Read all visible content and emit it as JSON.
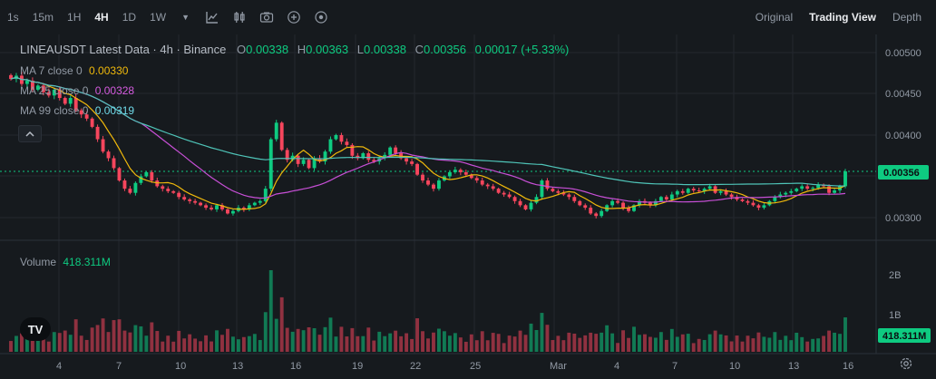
{
  "toolbar": {
    "timeframes": [
      "1s",
      "15m",
      "1H",
      "4H",
      "1D",
      "1W"
    ],
    "active_timeframe": "4H",
    "icons": [
      "chevron-down-icon",
      "indicators-icon",
      "candle-style-icon",
      "camera-icon",
      "add-circle-icon",
      "settings-dot-icon"
    ],
    "views": [
      "Original",
      "Trading View",
      "Depth"
    ],
    "active_view": "Trading View"
  },
  "legend": {
    "title": "LINEAUSDT Latest Data · 4h · Binance",
    "o_label": "O",
    "o": "0.00338",
    "h_label": "H",
    "h": "0.00363",
    "l_label": "L",
    "l": "0.00338",
    "c_label": "C",
    "c": "0.00356",
    "change": "0.00017 (+5.33%)",
    "ma7_label": "MA 7 close 0",
    "ma7": "0.00330",
    "ma25_label": "MA 25 close 0",
    "ma25": "0.00328",
    "ma99_label": "MA 99 close 0",
    "ma99": "0.00319",
    "volume_label": "Volume",
    "volume": "418.311M"
  },
  "price_axis": [
    "0.00500",
    "0.00450",
    "0.00400",
    "0.00350",
    "0.00300"
  ],
  "volume_axis": [
    "2B",
    "1B"
  ],
  "last_price_badge": "0.00356",
  "last_volume_badge": "418.311M",
  "time_axis": [
    "4",
    "7",
    "10",
    "13",
    "16",
    "19",
    "22",
    "25",
    "Mar",
    "4",
    "7",
    "10",
    "13",
    "16"
  ],
  "colors": {
    "up": "#0ecb81",
    "down": "#f6465d",
    "ma7": "#f0b90b",
    "ma25": "#c74fd6",
    "ma99": "#4fc4b8",
    "background": "#161a1e",
    "grid": "#24282e"
  },
  "chart_data": {
    "type": "candlestick",
    "symbol": "LINEAUSDT",
    "interval": "4h",
    "ylim": [
      0.0028,
      0.0052
    ],
    "close": [
      0.00468,
      0.00472,
      0.00462,
      0.00466,
      0.00455,
      0.0046,
      0.00452,
      0.00448,
      0.00455,
      0.00445,
      0.00438,
      0.00445,
      0.0043,
      0.00425,
      0.0042,
      0.0041,
      0.00395,
      0.0038,
      0.00372,
      0.0036,
      0.00345,
      0.00335,
      0.0033,
      0.00342,
      0.0035,
      0.00355,
      0.00345,
      0.00338,
      0.00335,
      0.00332,
      0.0033,
      0.00325,
      0.00322,
      0.0032,
      0.00318,
      0.00315,
      0.00312,
      0.0031,
      0.00315,
      0.0031,
      0.00305,
      0.00308,
      0.00312,
      0.0031,
      0.00315,
      0.00318,
      0.0032,
      0.00335,
      0.00395,
      0.00415,
      0.00382,
      0.0037,
      0.00375,
      0.00365,
      0.0037,
      0.0036,
      0.00372,
      0.00368,
      0.0038,
      0.00395,
      0.004,
      0.00392,
      0.00388,
      0.00375,
      0.00372,
      0.00378,
      0.0037,
      0.00368,
      0.00372,
      0.00376,
      0.00385,
      0.00378,
      0.00372,
      0.00368,
      0.00365,
      0.00352,
      0.00345,
      0.0034,
      0.00335,
      0.00345,
      0.0035,
      0.00355,
      0.00358,
      0.00355,
      0.00352,
      0.00348,
      0.00345,
      0.0034,
      0.00338,
      0.00335,
      0.0033,
      0.00328,
      0.00325,
      0.0032,
      0.00315,
      0.0031,
      0.00318,
      0.00325,
      0.00345,
      0.00335,
      0.00332,
      0.0033,
      0.00328,
      0.00325,
      0.0032,
      0.00315,
      0.00312,
      0.00305,
      0.00302,
      0.00308,
      0.00315,
      0.0032,
      0.00318,
      0.00312,
      0.00308,
      0.00315,
      0.0032,
      0.00318,
      0.00315,
      0.0032,
      0.00325,
      0.00322,
      0.00328,
      0.00332,
      0.0033,
      0.00335,
      0.00333,
      0.00332,
      0.00335,
      0.00338,
      0.0033,
      0.00332,
      0.00328,
      0.00325,
      0.00322,
      0.0032,
      0.00318,
      0.00315,
      0.00312,
      0.00315,
      0.0032,
      0.00325,
      0.00328,
      0.0033,
      0.00332,
      0.00335,
      0.00338,
      0.00335,
      0.00336,
      0.0034,
      0.00338,
      0.0033,
      0.00333,
      0.00338,
      0.00356
    ]
  }
}
